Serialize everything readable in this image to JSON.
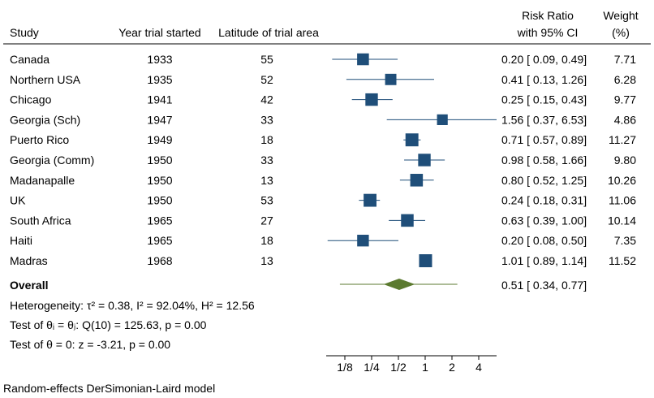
{
  "chart_data": {
    "type": "forest",
    "columns": {
      "study": "Study",
      "year": "Year trial started",
      "latitude": "Latitude of trial area",
      "rr_line1": "Risk Ratio",
      "rr_line2": "with 95% CI",
      "weight_line1": "Weight",
      "weight_line2": "(%)"
    },
    "studies": [
      {
        "name": "Canada",
        "year": "1933",
        "latitude": "55",
        "rr": 0.2,
        "lo": 0.09,
        "hi": 0.49,
        "ci_text": "0.20 [ 0.09, 0.49]",
        "weight": "7.71"
      },
      {
        "name": "Northern USA",
        "year": "1935",
        "latitude": "52",
        "rr": 0.41,
        "lo": 0.13,
        "hi": 1.26,
        "ci_text": "0.41 [ 0.13, 1.26]",
        "weight": "6.28"
      },
      {
        "name": "Chicago",
        "year": "1941",
        "latitude": "42",
        "rr": 0.25,
        "lo": 0.15,
        "hi": 0.43,
        "ci_text": "0.25 [ 0.15, 0.43]",
        "weight": "9.77"
      },
      {
        "name": "Georgia (Sch)",
        "year": "1947",
        "latitude": "33",
        "rr": 1.56,
        "lo": 0.37,
        "hi": 6.53,
        "ci_text": "1.56 [ 0.37, 6.53]",
        "weight": "4.86"
      },
      {
        "name": "Puerto Rico",
        "year": "1949",
        "latitude": "18",
        "rr": 0.71,
        "lo": 0.57,
        "hi": 0.89,
        "ci_text": "0.71 [ 0.57, 0.89]",
        "weight": "11.27"
      },
      {
        "name": "Georgia (Comm)",
        "year": "1950",
        "latitude": "33",
        "rr": 0.98,
        "lo": 0.58,
        "hi": 1.66,
        "ci_text": "0.98 [ 0.58, 1.66]",
        "weight": "9.80"
      },
      {
        "name": "Madanapalle",
        "year": "1950",
        "latitude": "13",
        "rr": 0.8,
        "lo": 0.52,
        "hi": 1.25,
        "ci_text": "0.80 [ 0.52, 1.25]",
        "weight": "10.26"
      },
      {
        "name": "UK",
        "year": "1950",
        "latitude": "53",
        "rr": 0.24,
        "lo": 0.18,
        "hi": 0.31,
        "ci_text": "0.24 [ 0.18, 0.31]",
        "weight": "11.06"
      },
      {
        "name": "South Africa",
        "year": "1965",
        "latitude": "27",
        "rr": 0.63,
        "lo": 0.39,
        "hi": 1.0,
        "ci_text": "0.63 [ 0.39, 1.00]",
        "weight": "10.14"
      },
      {
        "name": "Haiti",
        "year": "1965",
        "latitude": "18",
        "rr": 0.2,
        "lo": 0.08,
        "hi": 0.5,
        "ci_text": "0.20 [ 0.08, 0.50]",
        "weight": "7.35"
      },
      {
        "name": "Madras",
        "year": "1968",
        "latitude": "13",
        "rr": 1.01,
        "lo": 0.89,
        "hi": 1.14,
        "ci_text": "1.01 [ 0.89, 1.14]",
        "weight": "11.52"
      }
    ],
    "overall": {
      "label": "Overall",
      "rr": 0.51,
      "lo": 0.34,
      "hi": 0.77,
      "pred_lo": 0.11,
      "pred_hi": 2.3,
      "ci_text": "0.51 [ 0.34, 0.77]"
    },
    "stats": {
      "heterogeneity": "Heterogeneity: τ² = 0.38, I² = 92.04%, H² = 12.56",
      "test_equal": "Test of θᵢ = θⱼ: Q(10) = 125.63, p = 0.00",
      "test_zero": "Test of θ = 0: z = -3.21, p = 0.00"
    },
    "x_axis": {
      "scale": "log",
      "range": [
        0.0625,
        8
      ],
      "ticks": [
        {
          "value": 0.125,
          "label": "1/8"
        },
        {
          "value": 0.25,
          "label": "1/4"
        },
        {
          "value": 0.5,
          "label": "1/2"
        },
        {
          "value": 1,
          "label": "1"
        },
        {
          "value": 2,
          "label": "2"
        },
        {
          "value": 4,
          "label": "4"
        }
      ]
    },
    "footnote": "Random-effects DerSimonian-Laird model",
    "colors": {
      "study_marker": "#1f4e79",
      "overall_marker": "#5b7a2f"
    }
  }
}
